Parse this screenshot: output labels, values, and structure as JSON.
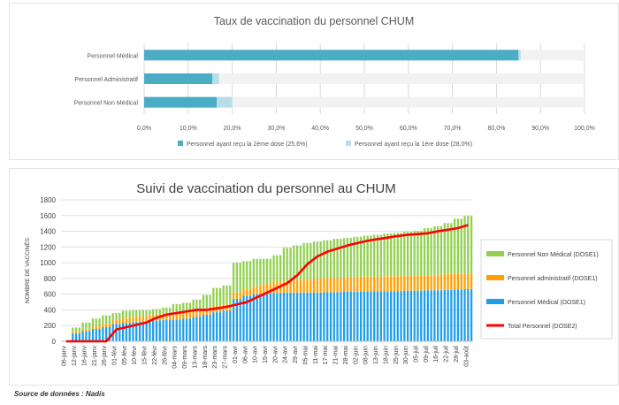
{
  "source_note": "Source de données : Nadis",
  "chart_data": [
    {
      "type": "bar",
      "orientation": "horizontal",
      "stacked": true,
      "title": "Taux de vaccination du personnel CHUM",
      "categories": [
        "Personnel Médical",
        "Personnel Administratif",
        "Personnel Non Médical"
      ],
      "series": [
        {
          "name": "Personnel ayant reçu la 2ème dose (25,6%)",
          "values": [
            85.0,
            15.5,
            16.5
          ],
          "color": "#4bacc6"
        },
        {
          "name": "Personnel ayant reçu la 1ère dose (28,0%)",
          "values": [
            0.5,
            1.5,
            3.5
          ],
          "color": "#b7dee8"
        }
      ],
      "remainder_color": "#f2f2f2",
      "xlim": [
        0,
        100
      ],
      "xticks": [
        "0,0%",
        "10,0%",
        "20,0%",
        "30,0%",
        "40,0%",
        "50,0%",
        "60,0%",
        "70,0%",
        "80,0%",
        "90,0%",
        "100,0%"
      ],
      "legend_position": "bottom",
      "grid": true
    },
    {
      "type": "bar",
      "stacked": true,
      "title": "Suivi de vaccination du personnel au CHUM",
      "ylabel": "NOMBRE DE VACCINÉS",
      "ylim": [
        0,
        1800
      ],
      "yticks": [
        0,
        200,
        400,
        600,
        800,
        1000,
        1200,
        1400,
        1600,
        1800
      ],
      "x_tick_labels": [
        "06-janv",
        "12-janv",
        "16-janv",
        "21-janv",
        "26-janv",
        "01-févr",
        "05-févr",
        "10-févr",
        "15-févr",
        "22-févr",
        "26-févr",
        "04-mars",
        "09-mars",
        "13-mars",
        "18-mars",
        "23-mars",
        "27-mars",
        "01-avr",
        "06-avr",
        "10-avr",
        "15-avr",
        "20-avr",
        "24-avr",
        "29-avr",
        "05-mai",
        "11-mai",
        "17-mai",
        "21-mai",
        "28-mai",
        "02-juin",
        "08-juin",
        "13-juin",
        "18-juin",
        "25-juin",
        "30-juin",
        "05-juil",
        "09-juil",
        "16-juil",
        "22-juil",
        "28-juil",
        "03-août"
      ],
      "series": [
        {
          "name": "Personnel Non Médical (DOSE1)",
          "color": "#92d050",
          "values": [
            0,
            60,
            90,
            100,
            110,
            90,
            95,
            85,
            70,
            70,
            80,
            120,
            120,
            140,
            170,
            230,
            240,
            380,
            350,
            350,
            320,
            340,
            420,
            440,
            460,
            470,
            480,
            500,
            500,
            510,
            520,
            530,
            540,
            550,
            560,
            570,
            600,
            620,
            650,
            700,
            730
          ]
        },
        {
          "name": "Personnel administratif (DOSE1)",
          "color": "#ffa000",
          "values": [
            0,
            15,
            20,
            30,
            40,
            50,
            60,
            65,
            70,
            75,
            80,
            80,
            80,
            80,
            80,
            80,
            80,
            80,
            90,
            100,
            120,
            140,
            150,
            160,
            170,
            180,
            180,
            180,
            185,
            190,
            190,
            190,
            190,
            190,
            190,
            190,
            190,
            195,
            200,
            200,
            200
          ]
        },
        {
          "name": "Personnel Médical (DOSE1)",
          "color": "#1f9ee8",
          "values": [
            0,
            100,
            130,
            160,
            180,
            220,
            235,
            245,
            255,
            265,
            270,
            275,
            290,
            310,
            340,
            370,
            390,
            540,
            580,
            600,
            610,
            615,
            620,
            620,
            620,
            620,
            625,
            625,
            630,
            630,
            635,
            635,
            640,
            640,
            645,
            645,
            650,
            650,
            655,
            660,
            665
          ]
        },
        {
          "name": "Total Personnel (DOSE2)",
          "type": "line",
          "color": "#ff0000",
          "values": [
            0,
            0,
            0,
            0,
            0,
            150,
            180,
            210,
            240,
            300,
            340,
            360,
            380,
            400,
            400,
            420,
            440,
            470,
            500,
            560,
            620,
            680,
            740,
            840,
            980,
            1080,
            1140,
            1180,
            1220,
            1250,
            1280,
            1300,
            1320,
            1340,
            1355,
            1365,
            1375,
            1400,
            1420,
            1440,
            1480
          ]
        }
      ],
      "legend_position": "right",
      "grid": true
    }
  ]
}
